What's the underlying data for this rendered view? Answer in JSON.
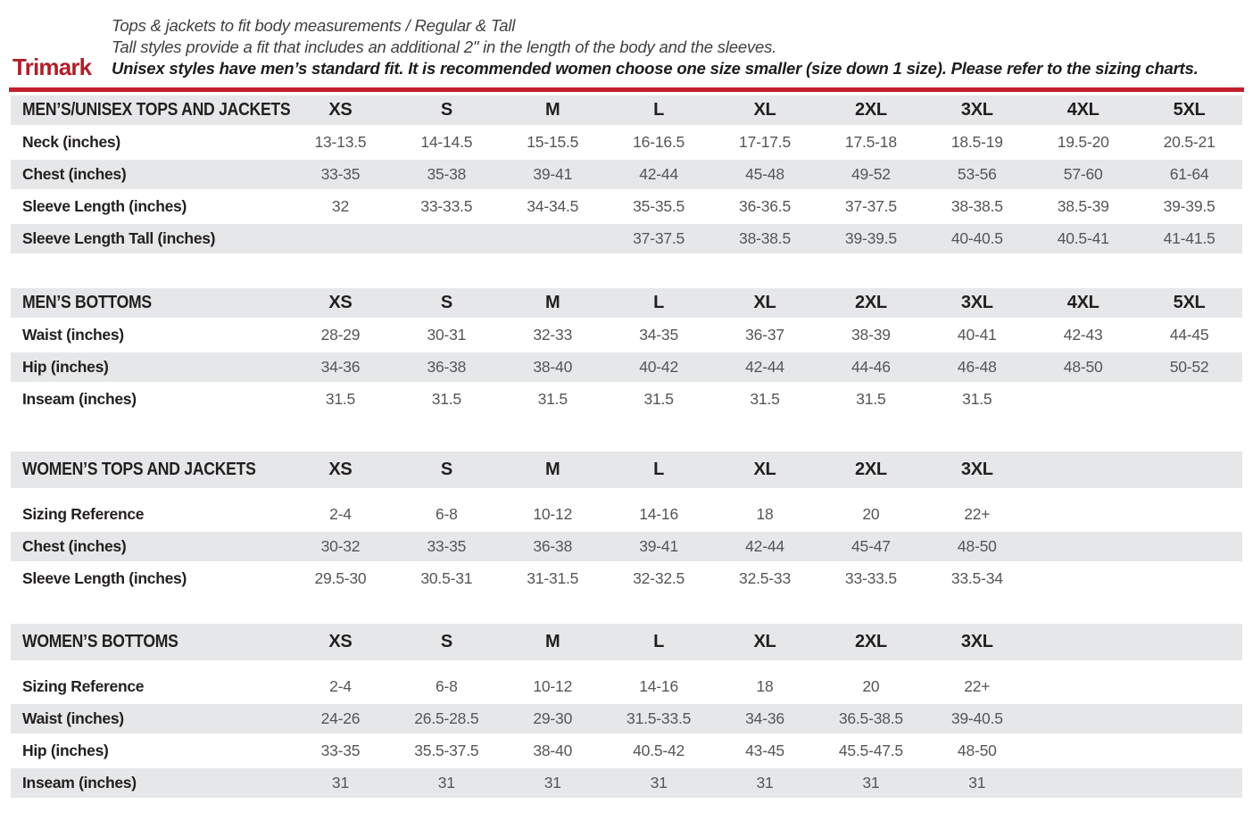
{
  "header": {
    "logo": "Trimark",
    "line1": "Tops & jackets to fit body measurements / Regular & Tall",
    "line2": "Tall styles provide a fit that includes an additional 2\" in the length of the body and the sleeves.",
    "line3": "Unisex styles have men’s standard fit. It is recommended women choose one size smaller (size down 1 size).  Please refer to the sizing charts."
  },
  "colors": {
    "accent_red": "#c2202e",
    "logo_red": "#b01e28",
    "stripe_gray": "#e6e7e8",
    "label_dark": "#231f20",
    "value_gray": "#54565a"
  },
  "tables": [
    {
      "title": "MEN’S/UNISEX TOPS AND JACKETS",
      "header_gap": false,
      "sizes": [
        "XS",
        "S",
        "M",
        "L",
        "XL",
        "2XL",
        "3XL",
        "4XL",
        "5XL"
      ],
      "rows": [
        {
          "label": "Neck (inches)",
          "values": [
            "13-13.5",
            "14-14.5",
            "15-15.5",
            "16-16.5",
            "17-17.5",
            "17.5-18",
            "18.5-19",
            "19.5-20",
            "20.5-21"
          ]
        },
        {
          "label": "Chest (inches)",
          "values": [
            "33-35",
            "35-38",
            "39-41",
            "42-44",
            "45-48",
            "49-52",
            "53-56",
            "57-60",
            "61-64"
          ]
        },
        {
          "label": "Sleeve Length (inches)",
          "values": [
            "32",
            "33-33.5",
            "34-34.5",
            "35-35.5",
            "36-36.5",
            "37-37.5",
            "38-38.5",
            "38.5-39",
            "39-39.5"
          ]
        },
        {
          "label": "Sleeve Length Tall (inches)",
          "values": [
            "",
            "",
            "",
            "37-37.5",
            "38-38.5",
            "39-39.5",
            "40-40.5",
            "40.5-41",
            "41-41.5"
          ]
        }
      ]
    },
    {
      "title": "MEN’S BOTTOMS",
      "header_gap": false,
      "sizes": [
        "XS",
        "S",
        "M",
        "L",
        "XL",
        "2XL",
        "3XL",
        "4XL",
        "5XL"
      ],
      "rows": [
        {
          "label": "Waist (inches)",
          "values": [
            "28-29",
            "30-31",
            "32-33",
            "34-35",
            "36-37",
            "38-39",
            "40-41",
            "42-43",
            "44-45"
          ]
        },
        {
          "label": "Hip (inches)",
          "values": [
            "34-36",
            "36-38",
            "38-40",
            "40-42",
            "42-44",
            "44-46",
            "46-48",
            "48-50",
            "50-52"
          ]
        },
        {
          "label": "Inseam (inches)",
          "values": [
            "31.5",
            "31.5",
            "31.5",
            "31.5",
            "31.5",
            "31.5",
            "31.5",
            "",
            ""
          ]
        }
      ]
    },
    {
      "title": "WOMEN’S TOPS AND JACKETS",
      "header_gap": true,
      "sizes": [
        "XS",
        "S",
        "M",
        "L",
        "XL",
        "2XL",
        "3XL",
        "",
        ""
      ],
      "rows": [
        {
          "label": "Sizing Reference",
          "values": [
            "2-4",
            "6-8",
            "10-12",
            "14-16",
            "18",
            "20",
            "22+",
            "",
            ""
          ]
        },
        {
          "label": "Chest (inches)",
          "values": [
            "30-32",
            "33-35",
            "36-38",
            "39-41",
            "42-44",
            "45-47",
            "48-50",
            "",
            ""
          ]
        },
        {
          "label": "Sleeve Length (inches)",
          "values": [
            "29.5-30",
            "30.5-31",
            "31-31.5",
            "32-32.5",
            "32.5-33",
            "33-33.5",
            "33.5-34",
            "",
            ""
          ]
        }
      ]
    },
    {
      "title": "WOMEN’S BOTTOMS",
      "header_gap": true,
      "sizes": [
        "XS",
        "S",
        "M",
        "L",
        "XL",
        "2XL",
        "3XL",
        "",
        ""
      ],
      "rows": [
        {
          "label": "Sizing Reference",
          "values": [
            "2-4",
            "6-8",
            "10-12",
            "14-16",
            "18",
            "20",
            "22+",
            "",
            ""
          ]
        },
        {
          "label": "Waist (inches)",
          "values": [
            "24-26",
            "26.5-28.5",
            "29-30",
            "31.5-33.5",
            "34-36",
            "36.5-38.5",
            "39-40.5",
            "",
            ""
          ]
        },
        {
          "label": "Hip (inches)",
          "values": [
            "33-35",
            "35.5-37.5",
            "38-40",
            "40.5-42",
            "43-45",
            "45.5-47.5",
            "48-50",
            "",
            ""
          ]
        },
        {
          "label": "Inseam (inches)",
          "values": [
            "31",
            "31",
            "31",
            "31",
            "31",
            "31",
            "31",
            "",
            ""
          ]
        }
      ]
    }
  ]
}
